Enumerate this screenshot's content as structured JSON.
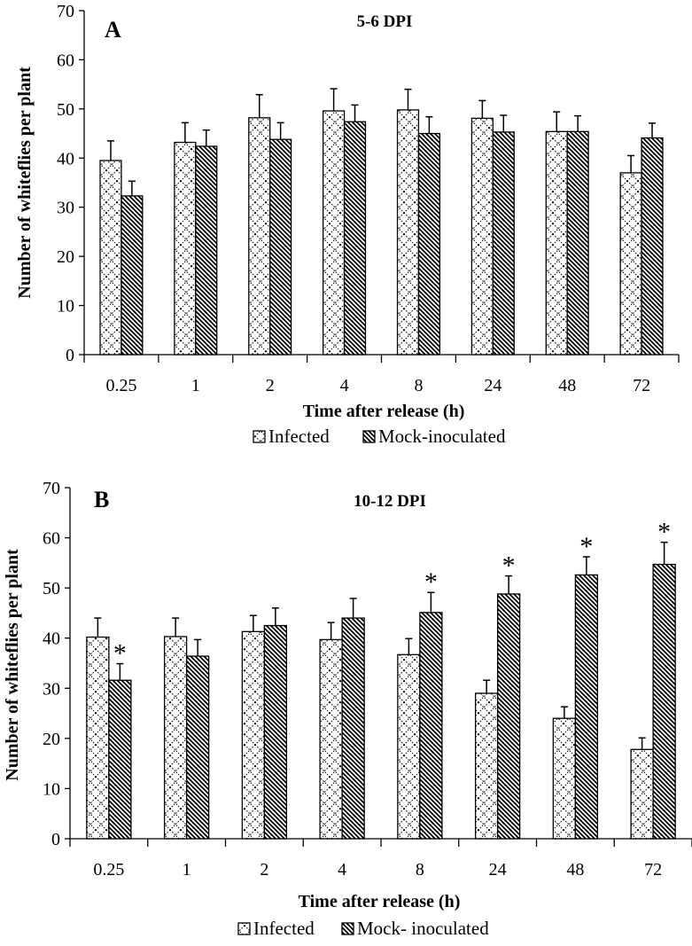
{
  "chart_data": [
    {
      "type": "bar",
      "panel_label": "A",
      "title": "5-6 DPI",
      "xlabel": "Time after release (h)",
      "ylabel": "Number of whiteflies per plant",
      "ylim": [
        0,
        70
      ],
      "yticks": [
        "0",
        "10",
        "20",
        "30",
        "40",
        "50",
        "60",
        "70"
      ],
      "categories": [
        "0.25",
        "1",
        "2",
        "4",
        "8",
        "24",
        "48",
        "72"
      ],
      "legend": {
        "position": "bottom",
        "labels": [
          "Infected",
          "Mock-inoculated"
        ]
      },
      "series": [
        {
          "name": "Infected",
          "pattern": "cross",
          "values": [
            39.5,
            43.2,
            48.2,
            49.6,
            49.8,
            48.1,
            45.4,
            37.0
          ],
          "errors": [
            4.0,
            4.0,
            4.7,
            4.5,
            4.2,
            3.6,
            4.0,
            3.5
          ]
        },
        {
          "name": "Mock-inoculated",
          "pattern": "diag",
          "values": [
            32.3,
            42.4,
            43.8,
            47.4,
            45.0,
            45.3,
            45.4,
            44.1
          ],
          "errors": [
            3.0,
            3.3,
            3.4,
            3.4,
            3.4,
            3.4,
            3.2,
            3.0
          ]
        }
      ],
      "significant": []
    },
    {
      "type": "bar",
      "panel_label": "B",
      "title": "10-12 DPI",
      "xlabel": "Time after release (h)",
      "ylabel": "Number of whiteflies per plant",
      "ylim": [
        0,
        70
      ],
      "yticks": [
        "0",
        "10",
        "20",
        "30",
        "40",
        "50",
        "60",
        "70"
      ],
      "categories": [
        "0.25",
        "1",
        "2",
        "4",
        "8",
        "24",
        "48",
        "72"
      ],
      "legend": {
        "position": "bottom",
        "labels": [
          "Infected",
          "Mock- inoculated"
        ]
      },
      "series": [
        {
          "name": "Infected",
          "pattern": "cross",
          "values": [
            40.2,
            40.3,
            41.3,
            39.7,
            36.7,
            29.0,
            24.0,
            17.8
          ],
          "errors": [
            3.8,
            3.7,
            3.2,
            3.4,
            3.2,
            2.6,
            2.3,
            2.3
          ]
        },
        {
          "name": "Mock- inoculated",
          "pattern": "diag",
          "values": [
            31.6,
            36.4,
            42.5,
            44.0,
            45.1,
            48.8,
            52.6,
            54.7
          ],
          "errors": [
            3.3,
            3.3,
            3.5,
            3.9,
            4.0,
            3.6,
            3.6,
            4.4
          ]
        }
      ],
      "significant": [
        0,
        4,
        5,
        6,
        7
      ],
      "significance_marker": "*"
    }
  ]
}
